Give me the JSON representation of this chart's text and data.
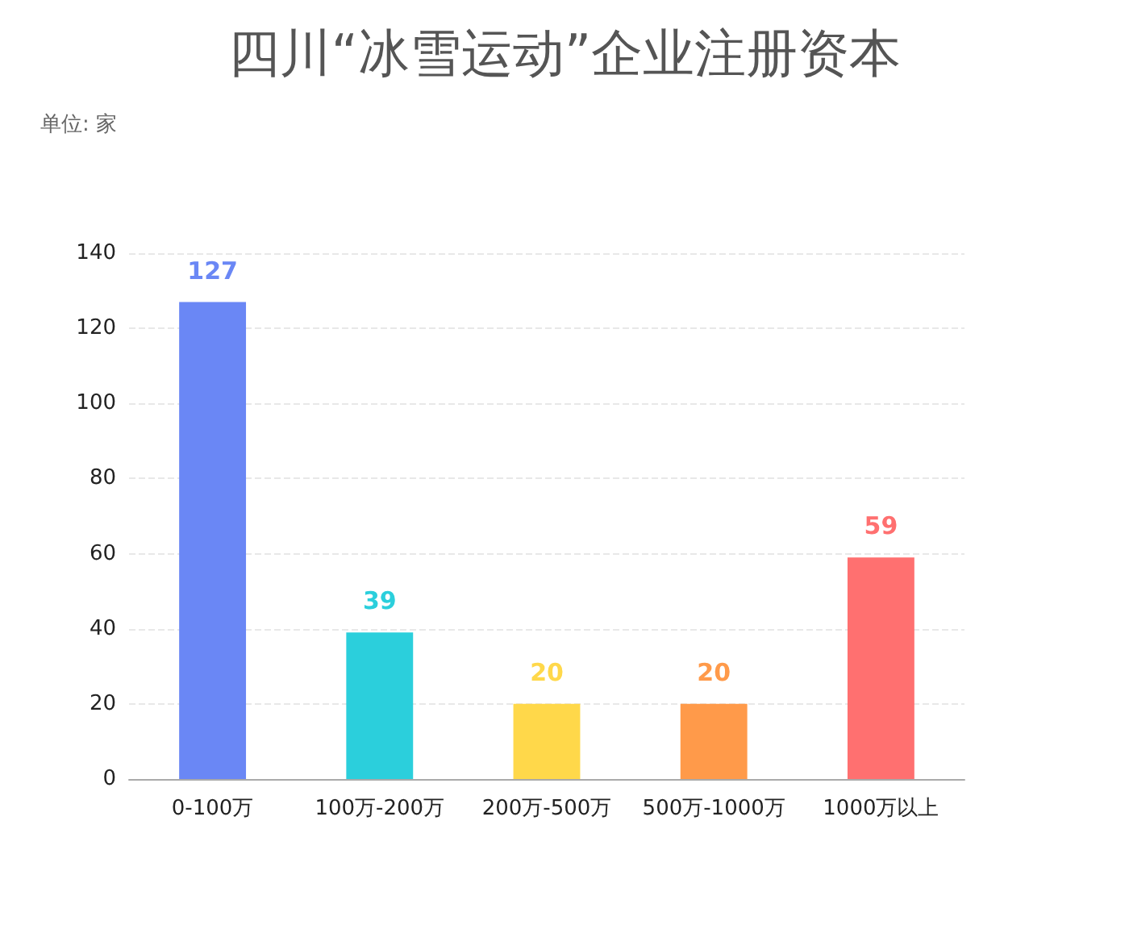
{
  "chart_data": {
    "type": "bar",
    "title": "四川“冰雪运动”企业注册资本",
    "subtitle": "单位: 家",
    "categories": [
      "0-100万",
      "100万-200万",
      "200万-500万",
      "500万-1000万",
      "1000万以上"
    ],
    "values": [
      127,
      39,
      20,
      20,
      59
    ],
    "colors": [
      "#6a87f5",
      "#2bcfdc",
      "#ffd84a",
      "#ff9a4a",
      "#ff7070"
    ],
    "ylim": [
      0,
      140
    ],
    "yticks": [
      0,
      20,
      40,
      60,
      80,
      100,
      120,
      140
    ],
    "grid": "y",
    "data_labels": true
  }
}
